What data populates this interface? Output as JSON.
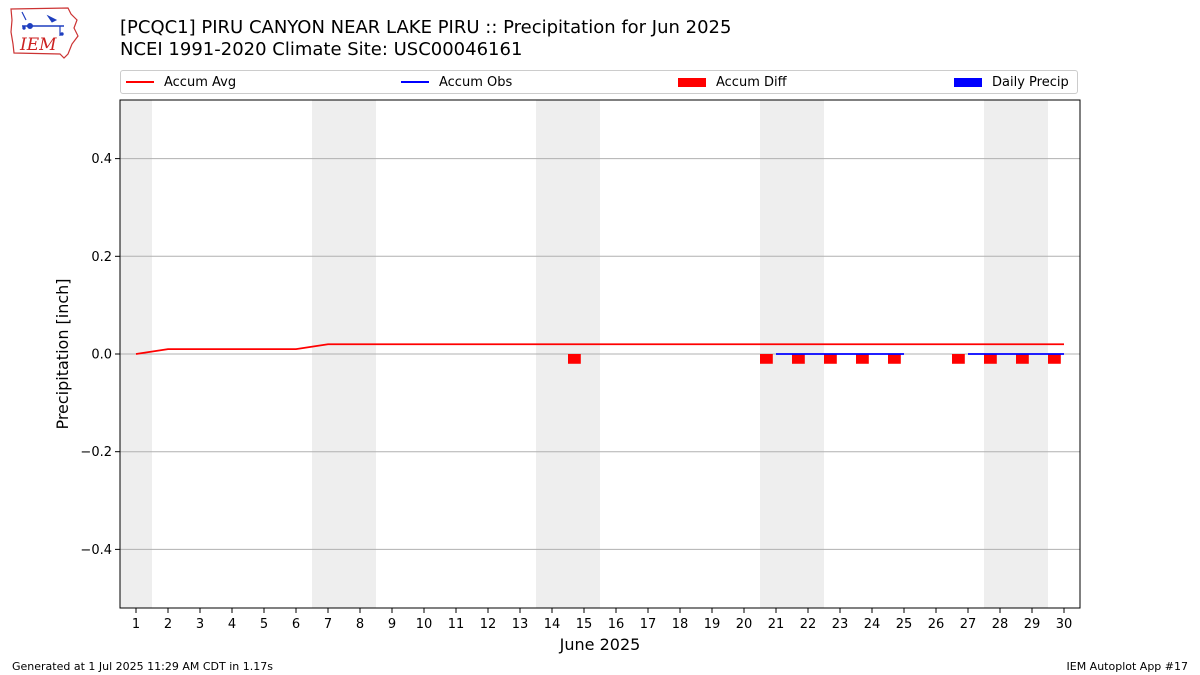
{
  "logo": {
    "text": "IEM",
    "outline_color": "#cc3333",
    "icon_color": "#1f3fbf"
  },
  "title": {
    "line1": "[PCQC1] PIRU CANYON NEAR LAKE PIRU :: Precipitation for Jun 2025",
    "line2": "NCEI 1991-2020 Climate Site: USC00046161"
  },
  "legend": {
    "accum_avg": "Accum Avg",
    "accum_obs": "Accum Obs",
    "accum_diff": "Accum Diff",
    "daily_precip": "Daily Precip"
  },
  "footer": {
    "left": "Generated at 1 Jul 2025 11:29 AM CDT in 1.17s",
    "right": "IEM Autoplot App #17"
  },
  "chart_data": {
    "type": "line",
    "title": "[PCQC1] PIRU CANYON NEAR LAKE PIRU :: Precipitation for Jun 2025",
    "xlabel": "June 2025",
    "ylabel": "Precipitation [inch]",
    "xlim": [
      0.5,
      30.5
    ],
    "ylim": [
      -0.52,
      0.52
    ],
    "x_ticks": [
      1,
      2,
      3,
      4,
      5,
      6,
      7,
      8,
      9,
      10,
      11,
      12,
      13,
      14,
      15,
      16,
      17,
      18,
      19,
      20,
      21,
      22,
      23,
      24,
      25,
      26,
      27,
      28,
      29,
      30
    ],
    "y_ticks": [
      -0.4,
      -0.2,
      0.0,
      0.2,
      0.4
    ],
    "y_tick_labels": [
      "−0.4",
      "−0.2",
      "0.0",
      "0.2",
      "0.4"
    ],
    "grid": "horizontal",
    "legend_position": "top",
    "weekend_shading": [
      [
        0.5,
        1.5
      ],
      [
        6.5,
        8.5
      ],
      [
        13.5,
        15.5
      ],
      [
        20.5,
        22.5
      ],
      [
        27.5,
        29.5
      ]
    ],
    "colors": {
      "avg": "#ff0000",
      "obs": "#0000ff",
      "diff": "#ff0000",
      "daily": "#0000ff",
      "weekend": "#eeeeee",
      "grid": "#b0b0b0"
    },
    "series": [
      {
        "name": "Accum Avg",
        "x": [
          1,
          2,
          3,
          4,
          5,
          6,
          7,
          8,
          9,
          10,
          11,
          12,
          13,
          14,
          15,
          16,
          17,
          18,
          19,
          20,
          21,
          22,
          23,
          24,
          25,
          26,
          27,
          28,
          29,
          30
        ],
        "values": [
          0.0,
          0.01,
          0.01,
          0.01,
          0.01,
          0.01,
          0.02,
          0.02,
          0.02,
          0.02,
          0.02,
          0.02,
          0.02,
          0.02,
          0.02,
          0.02,
          0.02,
          0.02,
          0.02,
          0.02,
          0.02,
          0.02,
          0.02,
          0.02,
          0.02,
          0.02,
          0.02,
          0.02,
          0.02,
          0.02
        ]
      },
      {
        "name": "Accum Obs",
        "segments": [
          {
            "x": [
              21,
              22,
              23,
              24,
              25
            ],
            "values": [
              0,
              0,
              0,
              0,
              0
            ]
          },
          {
            "x": [
              27,
              28,
              29,
              30
            ],
            "values": [
              0,
              0,
              0,
              0
            ]
          }
        ]
      },
      {
        "name": "Accum Diff",
        "x": [
          15,
          21,
          22,
          23,
          24,
          25,
          27,
          28,
          29,
          30
        ],
        "values": [
          -0.02,
          -0.02,
          -0.02,
          -0.02,
          -0.02,
          -0.02,
          -0.02,
          -0.02,
          -0.02,
          -0.02
        ]
      },
      {
        "name": "Daily Precip",
        "x": [],
        "values": []
      }
    ]
  }
}
